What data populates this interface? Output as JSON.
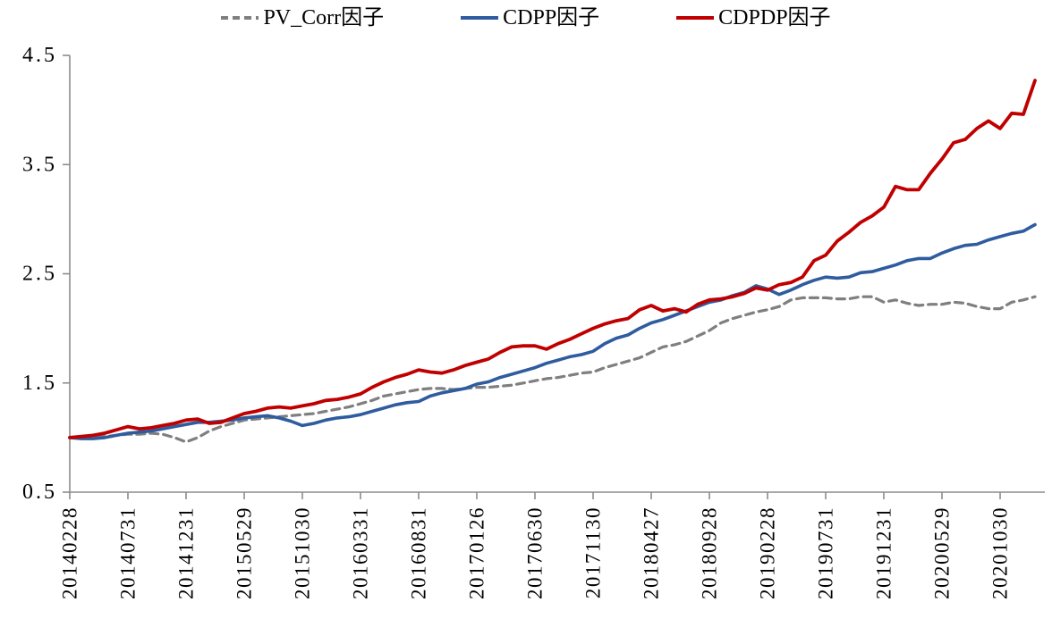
{
  "legend": [
    {
      "label": "PV_Corr因子",
      "color": "#7f7f7f",
      "style": "dashed"
    },
    {
      "label": "CDPP因子",
      "color": "#2e5c9e",
      "style": "solid"
    },
    {
      "label": "CDPDP因子",
      "color": "#c00000",
      "style": "solid"
    }
  ],
  "axis_color": "#8c8c8c",
  "label_color": "#000000",
  "chart_data": {
    "type": "line",
    "title": "",
    "xlabel": "",
    "ylabel": "",
    "ylim": [
      0.5,
      4.5
    ],
    "y_tick_labels": [
      "0.5",
      "1.5",
      "2.5",
      "3.5",
      "4.5"
    ],
    "x_tick_interval": 5,
    "x_tick_labels": [
      "20140228",
      "20140731",
      "20141231",
      "20150529",
      "20151030",
      "20160331",
      "20160831",
      "20170126",
      "20170630",
      "20171130",
      "20180427",
      "20180928",
      "20190228",
      "20190731",
      "20191231",
      "20200529",
      "20201030"
    ],
    "x_frequency": "monthly",
    "grid": false,
    "legend_position": "top",
    "series": [
      {
        "name": "PV_Corr因子",
        "color": "#7f7f7f",
        "dash": true,
        "values": [
          1.0,
          1.0,
          1.01,
          1.01,
          1.02,
          1.03,
          1.03,
          1.04,
          1.03,
          1.0,
          0.96,
          1.0,
          1.06,
          1.1,
          1.13,
          1.16,
          1.17,
          1.18,
          1.19,
          1.2,
          1.21,
          1.22,
          1.24,
          1.26,
          1.28,
          1.31,
          1.34,
          1.38,
          1.4,
          1.42,
          1.44,
          1.45,
          1.45,
          1.44,
          1.45,
          1.46,
          1.46,
          1.47,
          1.48,
          1.5,
          1.52,
          1.54,
          1.55,
          1.57,
          1.59,
          1.6,
          1.64,
          1.67,
          1.7,
          1.73,
          1.78,
          1.83,
          1.85,
          1.88,
          1.93,
          1.98,
          2.05,
          2.09,
          2.12,
          2.15,
          2.17,
          2.2,
          2.26,
          2.28,
          2.28,
          2.28,
          2.27,
          2.27,
          2.29,
          2.29,
          2.24,
          2.26,
          2.23,
          2.21,
          2.22,
          2.22,
          2.24,
          2.23,
          2.2,
          2.18,
          2.18,
          2.24,
          2.26,
          2.29
        ]
      },
      {
        "name": "CDPP因子",
        "color": "#2e5c9e",
        "dash": false,
        "values": [
          1.0,
          0.99,
          0.99,
          1.0,
          1.02,
          1.04,
          1.05,
          1.06,
          1.08,
          1.1,
          1.12,
          1.14,
          1.14,
          1.15,
          1.16,
          1.18,
          1.19,
          1.2,
          1.18,
          1.15,
          1.11,
          1.13,
          1.16,
          1.18,
          1.19,
          1.21,
          1.24,
          1.27,
          1.3,
          1.32,
          1.33,
          1.38,
          1.41,
          1.43,
          1.45,
          1.49,
          1.51,
          1.55,
          1.58,
          1.61,
          1.64,
          1.68,
          1.71,
          1.74,
          1.76,
          1.79,
          1.86,
          1.91,
          1.94,
          2.0,
          2.05,
          2.08,
          2.12,
          2.16,
          2.2,
          2.24,
          2.26,
          2.3,
          2.33,
          2.39,
          2.36,
          2.31,
          2.35,
          2.4,
          2.44,
          2.47,
          2.46,
          2.47,
          2.51,
          2.52,
          2.55,
          2.58,
          2.62,
          2.64,
          2.64,
          2.69,
          2.73,
          2.76,
          2.77,
          2.81,
          2.84,
          2.87,
          2.89,
          2.95
        ]
      },
      {
        "name": "CDPDP因子",
        "color": "#c00000",
        "dash": false,
        "values": [
          1.0,
          1.01,
          1.02,
          1.04,
          1.07,
          1.1,
          1.08,
          1.09,
          1.11,
          1.13,
          1.16,
          1.17,
          1.13,
          1.14,
          1.18,
          1.22,
          1.24,
          1.27,
          1.28,
          1.27,
          1.29,
          1.31,
          1.34,
          1.35,
          1.37,
          1.4,
          1.46,
          1.51,
          1.55,
          1.58,
          1.62,
          1.6,
          1.59,
          1.62,
          1.66,
          1.69,
          1.72,
          1.78,
          1.83,
          1.84,
          1.84,
          1.81,
          1.86,
          1.9,
          1.95,
          2.0,
          2.04,
          2.07,
          2.09,
          2.17,
          2.21,
          2.16,
          2.18,
          2.15,
          2.22,
          2.26,
          2.27,
          2.29,
          2.32,
          2.37,
          2.35,
          2.4,
          2.42,
          2.47,
          2.62,
          2.67,
          2.8,
          2.88,
          2.97,
          3.03,
          3.11,
          3.3,
          3.27,
          3.27,
          3.42,
          3.55,
          3.7,
          3.73,
          3.83,
          3.9,
          3.83,
          3.97,
          3.96,
          4.27
        ]
      }
    ]
  }
}
